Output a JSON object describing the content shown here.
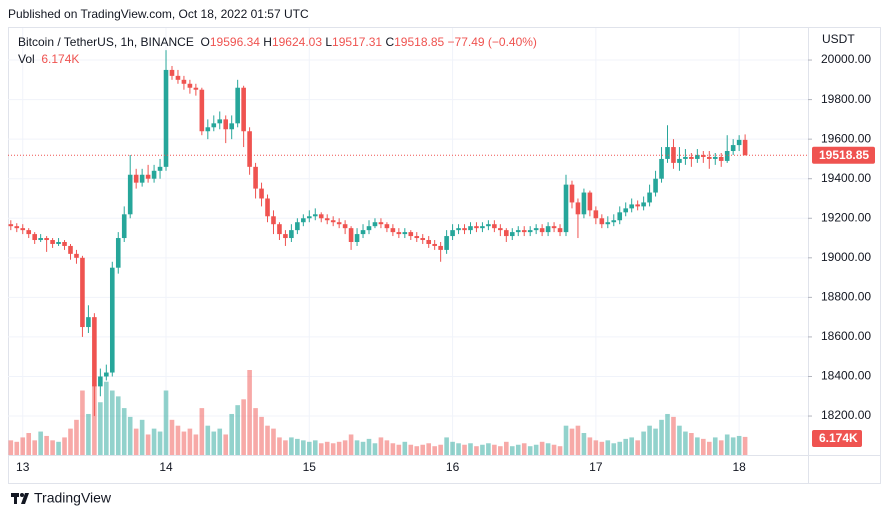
{
  "header": {
    "published": "Published on TradingView.com, Oct 18, 2022 01:57 UTC",
    "symbol": "Bitcoin / TetherUS, 1h, BINANCE",
    "o": "O",
    "h": "H",
    "l": "L",
    "c": "C",
    "change": "−77.49 (−0.40%)",
    "vol": "Vol",
    "currency": "USDT",
    "footer": "TradingView"
  },
  "chart_data": {
    "type": "candlestick",
    "categories": [
      null,
      null,
      "13",
      null,
      null,
      null,
      null,
      null,
      null,
      null,
      null,
      null,
      null,
      null,
      null,
      null,
      null,
      null,
      null,
      null,
      null,
      null,
      null,
      null,
      null,
      null,
      "14",
      null,
      null,
      null,
      null,
      null,
      null,
      null,
      null,
      null,
      null,
      null,
      null,
      null,
      null,
      null,
      null,
      null,
      null,
      null,
      null,
      null,
      null,
      null,
      "15",
      null,
      null,
      null,
      null,
      null,
      null,
      null,
      null,
      null,
      null,
      null,
      null,
      null,
      null,
      null,
      null,
      null,
      null,
      null,
      null,
      null,
      null,
      null,
      "16",
      null,
      null,
      null,
      null,
      null,
      null,
      null,
      null,
      null,
      null,
      null,
      null,
      null,
      null,
      null,
      null,
      null,
      null,
      null,
      null,
      null,
      null,
      null,
      "17",
      null,
      null,
      null,
      null,
      null,
      null,
      null,
      null,
      null,
      null,
      null,
      null,
      null,
      null,
      null,
      null,
      null,
      null,
      null,
      null,
      null,
      null,
      null,
      "18",
      null
    ],
    "open": [
      19170,
      19160,
      19150,
      19140,
      19120,
      19090,
      19100,
      19090,
      19070,
      19080,
      19060,
      19020,
      19000,
      18650,
      18700,
      18350,
      18400,
      18420,
      18950,
      19100,
      19220,
      19420,
      19380,
      19420,
      19400,
      19440,
      19460,
      19950,
      19920,
      19900,
      19880,
      19860,
      19850,
      19640,
      19660,
      19680,
      19700,
      19650,
      19680,
      19860,
      19640,
      19460,
      19350,
      19300,
      19210,
      19170,
      19120,
      19100,
      19140,
      19180,
      19200,
      19210,
      19220,
      19200,
      19190,
      19180,
      19170,
      19150,
      19080,
      19120,
      19140,
      19160,
      19180,
      19170,
      19150,
      19130,
      19120,
      19130,
      19110,
      19100,
      19090,
      19070,
      19060,
      19040,
      19110,
      19140,
      19150,
      19140,
      19160,
      19150,
      19160,
      19170,
      19150,
      19140,
      19110,
      19130,
      19140,
      19130,
      19140,
      19150,
      19130,
      19160,
      19150,
      19130,
      19370,
      19280,
      19220,
      19330,
      19240,
      19200,
      19170,
      19180,
      19190,
      19230,
      19250,
      19270,
      19260,
      19280,
      19330,
      19400,
      19500,
      19560,
      19480,
      19500,
      19510,
      19500,
      19520,
      19510,
      19500,
      19510,
      19490,
      19540,
      19570,
      19596.34
    ],
    "high": [
      19190,
      19175,
      19170,
      19150,
      19130,
      19120,
      19110,
      19100,
      19100,
      19090,
      19070,
      19040,
      19010,
      18760,
      18720,
      18440,
      18460,
      18980,
      19130,
      19260,
      19520,
      19450,
      19450,
      19470,
      19470,
      19500,
      20050,
      19970,
      19950,
      19920,
      19900,
      19880,
      19860,
      19700,
      19720,
      19740,
      19720,
      19720,
      19900,
      19870,
      19660,
      19480,
      19380,
      19320,
      19240,
      19180,
      19140,
      19170,
      19200,
      19220,
      19240,
      19250,
      19230,
      19220,
      19210,
      19200,
      19190,
      19160,
      19150,
      19170,
      19190,
      19200,
      19200,
      19180,
      19170,
      19150,
      19150,
      19140,
      19130,
      19120,
      19110,
      19090,
      19080,
      19140,
      19170,
      19170,
      19170,
      19180,
      19180,
      19180,
      19190,
      19190,
      19170,
      19150,
      19150,
      19160,
      19160,
      19160,
      19170,
      19170,
      19180,
      19180,
      19170,
      19420,
      19390,
      19300,
      19350,
      19340,
      19260,
      19220,
      19210,
      19220,
      19260,
      19280,
      19300,
      19290,
      19310,
      19370,
      19440,
      19560,
      19670,
      19600,
      19560,
      19550,
      19530,
      19550,
      19540,
      19540,
      19530,
      19530,
      19620,
      19600,
      19620,
      19624.03
    ],
    "low": [
      19140,
      19130,
      19120,
      19100,
      19070,
      19080,
      19030,
      19050,
      19060,
      19040,
      18990,
      18970,
      18600,
      18620,
      18200,
      18300,
      18380,
      18400,
      18920,
      19080,
      19200,
      19350,
      19360,
      19380,
      19380,
      19400,
      19440,
      19900,
      19880,
      19850,
      19830,
      19820,
      19620,
      19600,
      19640,
      19650,
      19580,
      19600,
      19660,
      19560,
      19420,
      19300,
      19260,
      19180,
      19120,
      19090,
      19060,
      19080,
      19120,
      19160,
      19180,
      19190,
      19180,
      19170,
      19160,
      19150,
      19120,
      19040,
      19060,
      19100,
      19120,
      19150,
      19150,
      19130,
      19110,
      19100,
      19100,
      19090,
      19080,
      19070,
      19050,
      19040,
      18980,
      19020,
      19090,
      19120,
      19120,
      19120,
      19130,
      19130,
      19140,
      19130,
      19110,
      19080,
      19090,
      19110,
      19110,
      19110,
      19120,
      19110,
      19110,
      19130,
      19110,
      19110,
      19250,
      19100,
      19200,
      19210,
      19170,
      19150,
      19150,
      19160,
      19170,
      19210,
      19230,
      19240,
      19240,
      19260,
      19310,
      19380,
      19480,
      19450,
      19440,
      19470,
      19460,
      19480,
      19480,
      19450,
      19470,
      19460,
      19480,
      19520,
      19540,
      19517.31
    ],
    "close": [
      19160,
      19150,
      19140,
      19120,
      19090,
      19100,
      19090,
      19070,
      19080,
      19060,
      19020,
      19000,
      18650,
      18700,
      18350,
      18400,
      18420,
      18950,
      19100,
      19220,
      19420,
      19380,
      19420,
      19400,
      19440,
      19460,
      19950,
      19920,
      19900,
      19880,
      19860,
      19850,
      19640,
      19660,
      19680,
      19700,
      19650,
      19680,
      19860,
      19640,
      19460,
      19350,
      19300,
      19210,
      19170,
      19120,
      19100,
      19140,
      19180,
      19200,
      19210,
      19220,
      19200,
      19190,
      19180,
      19170,
      19150,
      19080,
      19120,
      19140,
      19160,
      19180,
      19170,
      19150,
      19130,
      19120,
      19130,
      19110,
      19100,
      19090,
      19070,
      19060,
      19040,
      19110,
      19140,
      19150,
      19140,
      19160,
      19150,
      19160,
      19170,
      19150,
      19140,
      19110,
      19130,
      19140,
      19130,
      19140,
      19150,
      19130,
      19160,
      19150,
      19130,
      19370,
      19280,
      19220,
      19330,
      19240,
      19200,
      19170,
      19180,
      19190,
      19230,
      19250,
      19270,
      19260,
      19280,
      19330,
      19400,
      19500,
      19560,
      19480,
      19500,
      19510,
      19500,
      19520,
      19510,
      19500,
      19510,
      19490,
      19540,
      19570,
      19596.34,
      19518.85
    ],
    "volume": [
      5000,
      4500,
      6000,
      7500,
      5000,
      8000,
      6500,
      5000,
      4500,
      6000,
      9000,
      12000,
      22000,
      14000,
      24000,
      18000,
      25000,
      22000,
      20000,
      16000,
      13000,
      9000,
      12000,
      7000,
      9000,
      8000,
      22000,
      12000,
      10000,
      8000,
      9000,
      7000,
      16000,
      10000,
      8000,
      9000,
      7000,
      14000,
      17000,
      19000,
      29000,
      16000,
      13000,
      10000,
      9000,
      6000,
      5000,
      6000,
      5500,
      5000,
      4500,
      5000,
      4000,
      4500,
      4000,
      4500,
      5000,
      7000,
      5000,
      4500,
      5500,
      4000,
      6000,
      5000,
      4000,
      3500,
      4500,
      3500,
      3000,
      3500,
      4000,
      3000,
      3500,
      6000,
      4500,
      4000,
      3500,
      4000,
      3000,
      3500,
      4000,
      3500,
      3000,
      4500,
      3000,
      3500,
      4000,
      3000,
      3500,
      4500,
      4000,
      3500,
      3000,
      10000,
      9000,
      10000,
      7500,
      6000,
      5000,
      4500,
      5000,
      4000,
      4500,
      5500,
      6000,
      5000,
      8000,
      10000,
      9000,
      12000,
      14000,
      13000,
      10000,
      8000,
      7500,
      6000,
      5500,
      4500,
      6000,
      5000,
      7000,
      6000,
      6500,
      6174
    ],
    "volume_last_label": "6.174K",
    "ylim": [
      18003,
      20162
    ],
    "yticks": [
      {
        "value": 18200,
        "label": "18200.00"
      },
      {
        "value": 18400,
        "label": "18400.00"
      },
      {
        "value": 18600,
        "label": "18600.00"
      },
      {
        "value": 18800,
        "label": "18800.00"
      },
      {
        "value": 19000,
        "label": "19000.00"
      },
      {
        "value": 19200,
        "label": "19200.00"
      },
      {
        "value": 19400,
        "label": "19400.00"
      },
      {
        "value": 19600,
        "label": "19600.00"
      },
      {
        "value": 19800,
        "label": "19800.00"
      },
      {
        "value": 20000,
        "label": "20000.00"
      }
    ],
    "grid": true,
    "up_color": "#26a69a",
    "down_color": "#ef5350"
  }
}
